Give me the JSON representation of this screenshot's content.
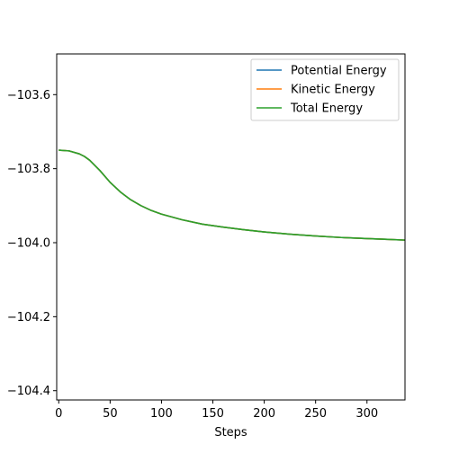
{
  "chart_data": {
    "type": "line",
    "title": "",
    "xlabel": "Steps",
    "ylabel": "",
    "xlim": [
      -2,
      337
    ],
    "ylim": [
      -104.425,
      -103.49
    ],
    "x_ticks": [
      0,
      50,
      100,
      150,
      200,
      250,
      300
    ],
    "x_tick_labels": [
      "0",
      "50",
      "100",
      "150",
      "200",
      "250",
      "300"
    ],
    "y_ticks": [
      -103.6,
      -103.8,
      -104.0,
      -104.2,
      -104.4
    ],
    "y_tick_labels": [
      "−103.6",
      "−103.8",
      "−104.0",
      "−104.2",
      "−104.4"
    ],
    "grid": false,
    "legend_position": "upper right",
    "x": [
      0,
      10,
      20,
      25,
      30,
      40,
      50,
      60,
      70,
      80,
      90,
      100,
      120,
      140,
      160,
      180,
      200,
      225,
      250,
      275,
      300,
      320,
      337
    ],
    "series": [
      {
        "name": "Potential Energy",
        "color": "#1f77b4",
        "values": [
          -103.75,
          -103.752,
          -103.76,
          -103.767,
          -103.777,
          -103.805,
          -103.837,
          -103.863,
          -103.884,
          -103.9,
          -103.913,
          -103.923,
          -103.938,
          -103.95,
          -103.958,
          -103.965,
          -103.971,
          -103.977,
          -103.982,
          -103.986,
          -103.989,
          -103.991,
          -103.993
        ]
      },
      {
        "name": "Kinetic Energy",
        "color": "#ff7f0e",
        "values": [
          -103.75,
          -103.752,
          -103.76,
          -103.767,
          -103.777,
          -103.805,
          -103.837,
          -103.863,
          -103.884,
          -103.9,
          -103.913,
          -103.923,
          -103.938,
          -103.95,
          -103.958,
          -103.965,
          -103.971,
          -103.977,
          -103.982,
          -103.986,
          -103.989,
          -103.991,
          -103.993
        ]
      },
      {
        "name": "Total Energy",
        "color": "#2ca02c",
        "values": [
          -103.75,
          -103.752,
          -103.76,
          -103.767,
          -103.777,
          -103.805,
          -103.837,
          -103.863,
          -103.884,
          -103.9,
          -103.913,
          -103.923,
          -103.938,
          -103.95,
          -103.958,
          -103.965,
          -103.971,
          -103.977,
          -103.982,
          -103.986,
          -103.989,
          -103.991,
          -103.993
        ]
      }
    ]
  }
}
